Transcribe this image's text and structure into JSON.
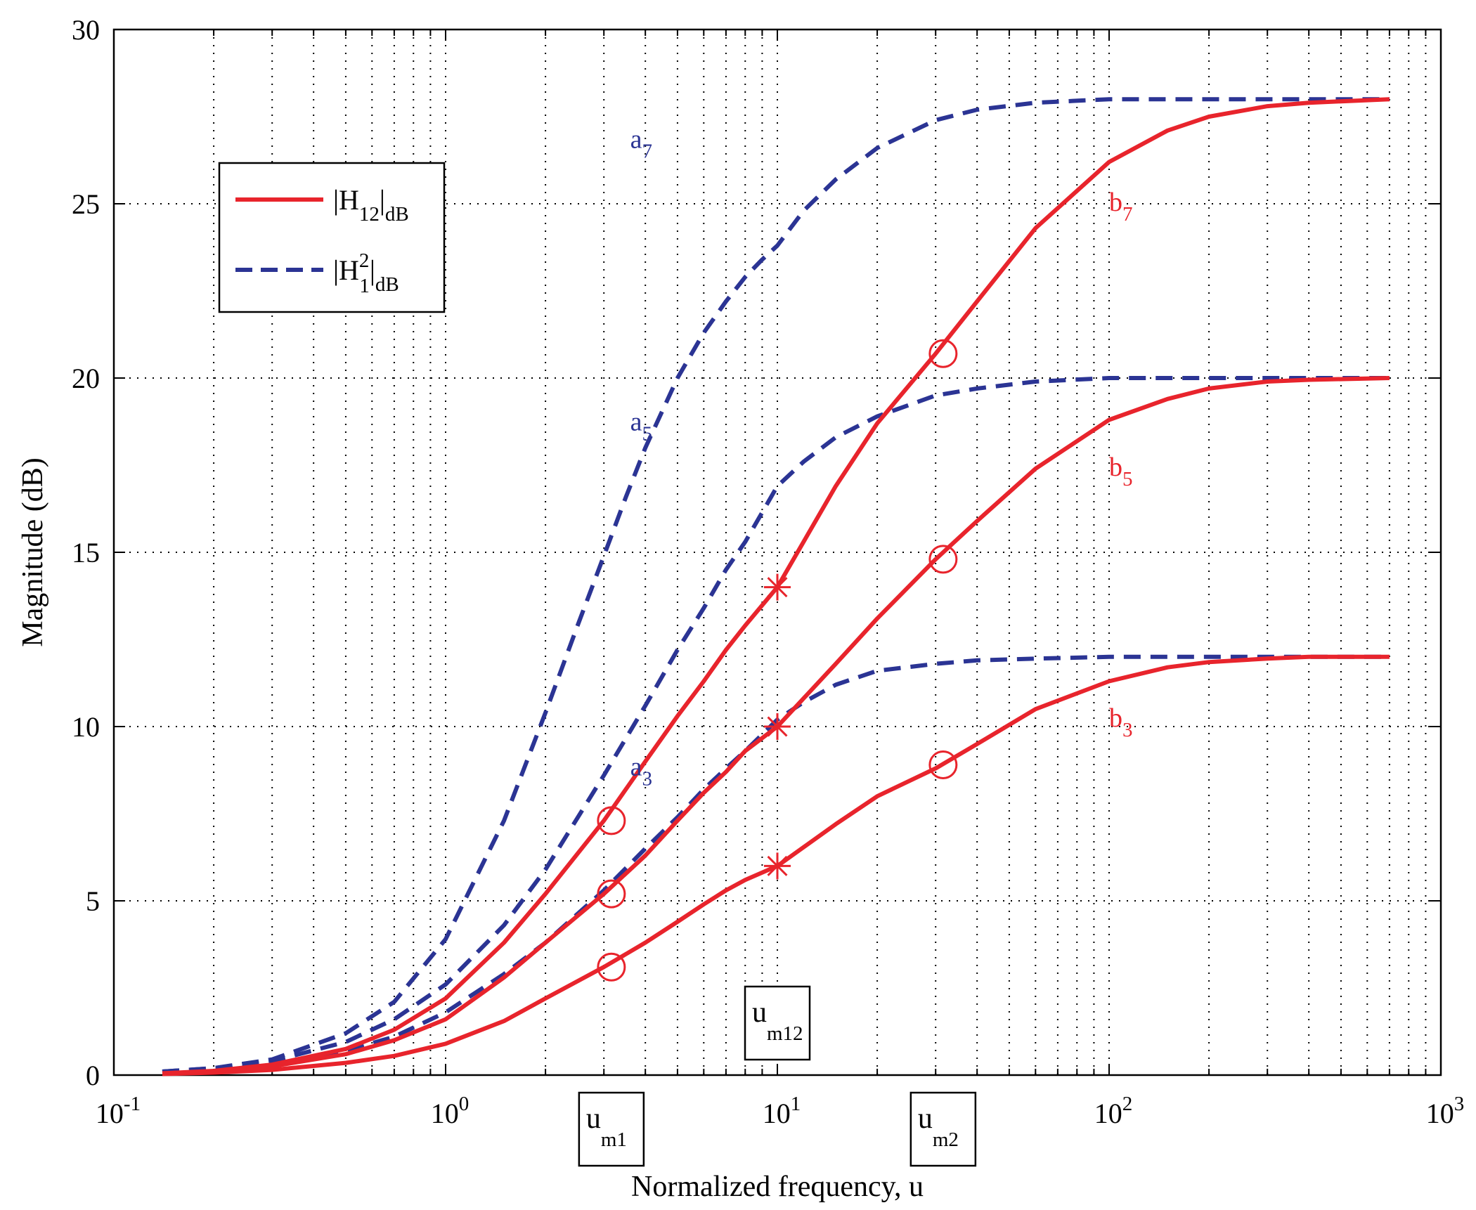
{
  "chart_data": {
    "type": "line",
    "xscale": "log",
    "xlabel": "Normalized frequency, u",
    "ylabel": "Magnitude (dB)",
    "xlim": [
      0.1,
      1000
    ],
    "ylim": [
      0,
      30
    ],
    "grid": true,
    "x_ticks": [
      {
        "base": "10",
        "exp": "-1",
        "value": 0.1
      },
      {
        "base": "10",
        "exp": "0",
        "value": 1
      },
      {
        "base": "10",
        "exp": "1",
        "value": 10
      },
      {
        "base": "10",
        "exp": "2",
        "value": 100
      },
      {
        "base": "10",
        "exp": "3",
        "value": 1000
      }
    ],
    "y_ticks": [
      "0",
      "5",
      "10",
      "15",
      "20",
      "25",
      "30"
    ],
    "series": [
      {
        "name": "a7",
        "style": "dashed",
        "color": "#2b3494",
        "label": "a",
        "sub": "7",
        "label_at": [
          3.6,
          26.6
        ],
        "x": [
          0.14,
          0.2,
          0.3,
          0.5,
          0.7,
          1,
          1.5,
          2,
          2.5,
          3,
          3.5,
          4,
          5,
          6,
          7,
          8,
          9,
          10,
          12,
          15,
          20,
          30,
          40,
          60,
          100,
          200,
          400,
          700
        ],
        "y": [
          0.1,
          0.2,
          0.45,
          1.2,
          2.1,
          3.9,
          7.3,
          10.4,
          12.9,
          14.9,
          16.6,
          18.0,
          20.0,
          21.3,
          22.2,
          22.9,
          23.4,
          23.8,
          24.8,
          25.7,
          26.6,
          27.4,
          27.7,
          27.9,
          28.0,
          28.0,
          28.0,
          28.0
        ]
      },
      {
        "name": "a5",
        "style": "dashed",
        "color": "#2b3494",
        "label": "a",
        "sub": "5",
        "label_at": [
          3.6,
          18.5
        ],
        "x": [
          0.14,
          0.2,
          0.3,
          0.5,
          0.7,
          1,
          1.5,
          2,
          3,
          4,
          5,
          6,
          7,
          8,
          10,
          12,
          15,
          20,
          30,
          40,
          60,
          100,
          200,
          400,
          700
        ],
        "y": [
          0.1,
          0.2,
          0.4,
          0.95,
          1.6,
          2.6,
          4.3,
          5.9,
          8.6,
          10.6,
          12.2,
          13.4,
          14.5,
          15.3,
          16.9,
          17.6,
          18.3,
          18.9,
          19.5,
          19.7,
          19.9,
          20.0,
          20.0,
          20.0,
          20.0
        ]
      },
      {
        "name": "a3",
        "style": "dashed",
        "color": "#2b3494",
        "label": "a",
        "sub": "3",
        "label_at": [
          3.6,
          8.6
        ],
        "x": [
          0.14,
          0.2,
          0.3,
          0.5,
          0.7,
          1,
          1.5,
          2,
          3,
          4,
          5,
          6,
          7,
          8,
          10,
          12,
          15,
          20,
          30,
          40,
          60,
          100,
          200,
          400,
          700
        ],
        "y": [
          0.1,
          0.15,
          0.3,
          0.7,
          1.1,
          1.8,
          2.9,
          3.8,
          5.3,
          6.5,
          7.4,
          8.2,
          8.8,
          9.3,
          10.2,
          10.7,
          11.2,
          11.6,
          11.8,
          11.9,
          11.95,
          12.0,
          12.0,
          12.0,
          12.0
        ]
      },
      {
        "name": "b7",
        "style": "solid",
        "color": "#e8242c",
        "label": "b",
        "sub": "7",
        "label_at": [
          100,
          24.8
        ],
        "x": [
          0.14,
          0.2,
          0.3,
          0.5,
          0.7,
          1,
          1.5,
          2,
          3,
          4,
          5,
          6,
          7,
          8,
          10,
          15,
          20,
          30,
          40,
          60,
          100,
          150,
          200,
          300,
          400,
          700
        ],
        "y": [
          0.05,
          0.12,
          0.3,
          0.75,
          1.3,
          2.2,
          3.8,
          5.2,
          7.3,
          9.0,
          10.3,
          11.3,
          12.2,
          12.9,
          14.0,
          16.9,
          18.7,
          20.7,
          22.2,
          24.3,
          26.2,
          27.1,
          27.5,
          27.8,
          27.9,
          28.0
        ]
      },
      {
        "name": "b5",
        "style": "solid",
        "color": "#e8242c",
        "label": "b",
        "sub": "5",
        "label_at": [
          100,
          17.2
        ],
        "x": [
          0.14,
          0.2,
          0.3,
          0.5,
          0.7,
          1,
          1.5,
          2,
          3,
          4,
          5,
          6,
          7,
          8,
          10,
          15,
          20,
          30,
          40,
          60,
          100,
          150,
          200,
          300,
          400,
          700
        ],
        "y": [
          0.05,
          0.1,
          0.25,
          0.6,
          1.0,
          1.6,
          2.8,
          3.8,
          5.2,
          6.3,
          7.3,
          8.1,
          8.7,
          9.3,
          10.0,
          11.8,
          13.1,
          14.8,
          15.9,
          17.4,
          18.8,
          19.4,
          19.7,
          19.9,
          19.95,
          20.0
        ]
      },
      {
        "name": "b3",
        "style": "solid",
        "color": "#e8242c",
        "label": "b",
        "sub": "3",
        "label_at": [
          100,
          10.0
        ],
        "x": [
          0.14,
          0.2,
          0.3,
          0.5,
          0.7,
          1,
          1.5,
          2,
          3,
          4,
          5,
          6,
          7,
          8,
          10,
          15,
          20,
          30,
          40,
          60,
          100,
          150,
          200,
          300,
          400,
          700
        ],
        "y": [
          0.03,
          0.07,
          0.15,
          0.35,
          0.55,
          0.9,
          1.55,
          2.2,
          3.1,
          3.8,
          4.4,
          4.9,
          5.3,
          5.6,
          6.0,
          7.2,
          8.0,
          8.8,
          9.5,
          10.5,
          11.3,
          11.7,
          11.85,
          11.95,
          12.0,
          12.0
        ]
      }
    ],
    "circle_markers": [
      {
        "x": 3.16,
        "y": 7.3
      },
      {
        "x": 3.16,
        "y": 5.2
      },
      {
        "x": 3.16,
        "y": 3.1
      },
      {
        "x": 31.6,
        "y": 20.7
      },
      {
        "x": 31.6,
        "y": 14.8
      },
      {
        "x": 31.6,
        "y": 8.9
      }
    ],
    "star_markers": [
      {
        "x": 10,
        "y": 14.0
      },
      {
        "x": 10,
        "y": 10.0
      },
      {
        "x": 10,
        "y": 6.0
      }
    ],
    "legend": {
      "placement": "upper-left",
      "entries": [
        {
          "style": "solid",
          "color": "#e8242c",
          "main": "|H",
          "sub": "12",
          "sup": "",
          "after": "|",
          "after_sub": "dB"
        },
        {
          "style": "dashed",
          "color": "#2b3494",
          "main": "|H",
          "sub": "1",
          "sup": "2",
          "after": "|",
          "after_sub": "dB"
        }
      ]
    },
    "boxed_labels": [
      {
        "main": "u",
        "sub": "m12",
        "x": 10,
        "placement": "inside-bottom"
      },
      {
        "main": "u",
        "sub": "m1",
        "x": 3.16,
        "placement": "below-axis"
      },
      {
        "main": "u",
        "sub": "m2",
        "x": 31.6,
        "placement": "below-axis"
      }
    ]
  },
  "colors": {
    "red": "#e8242c",
    "blue": "#2b3494"
  }
}
